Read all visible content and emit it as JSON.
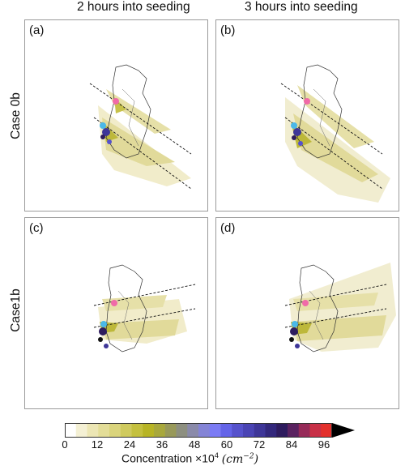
{
  "columns": [
    "2 hours into seeding",
    "3 hours into seeding"
  ],
  "rows": [
    "Case 0b",
    "Case1b"
  ],
  "panels": [
    "(a)",
    "(b)",
    "(c)",
    "(d)"
  ],
  "colorbar": {
    "ticks": [
      "0",
      "12",
      "24",
      "36",
      "48",
      "60",
      "72",
      "84",
      "96"
    ],
    "label_prefix": "Concentration ×10",
    "label_exp": "4",
    "label_unit": "(cm",
    "label_unit_exp": "−2",
    "label_unit_close": ")",
    "colors": [
      "#ffffff",
      "#f4f0d4",
      "#ece6b4",
      "#e3dd98",
      "#dad47c",
      "#cfca5e",
      "#c4c03e",
      "#b7b425",
      "#a8a83c",
      "#98995a",
      "#8d8f80",
      "#8a8aaa",
      "#8484d6",
      "#7b7bf4",
      "#6464e8",
      "#5652cc",
      "#4a44b4",
      "#3e3698",
      "#33287c",
      "#2e1c5e",
      "#5a2260",
      "#962a58",
      "#c83047",
      "#e3302c"
    ],
    "extend_color": "#000000"
  }
}
